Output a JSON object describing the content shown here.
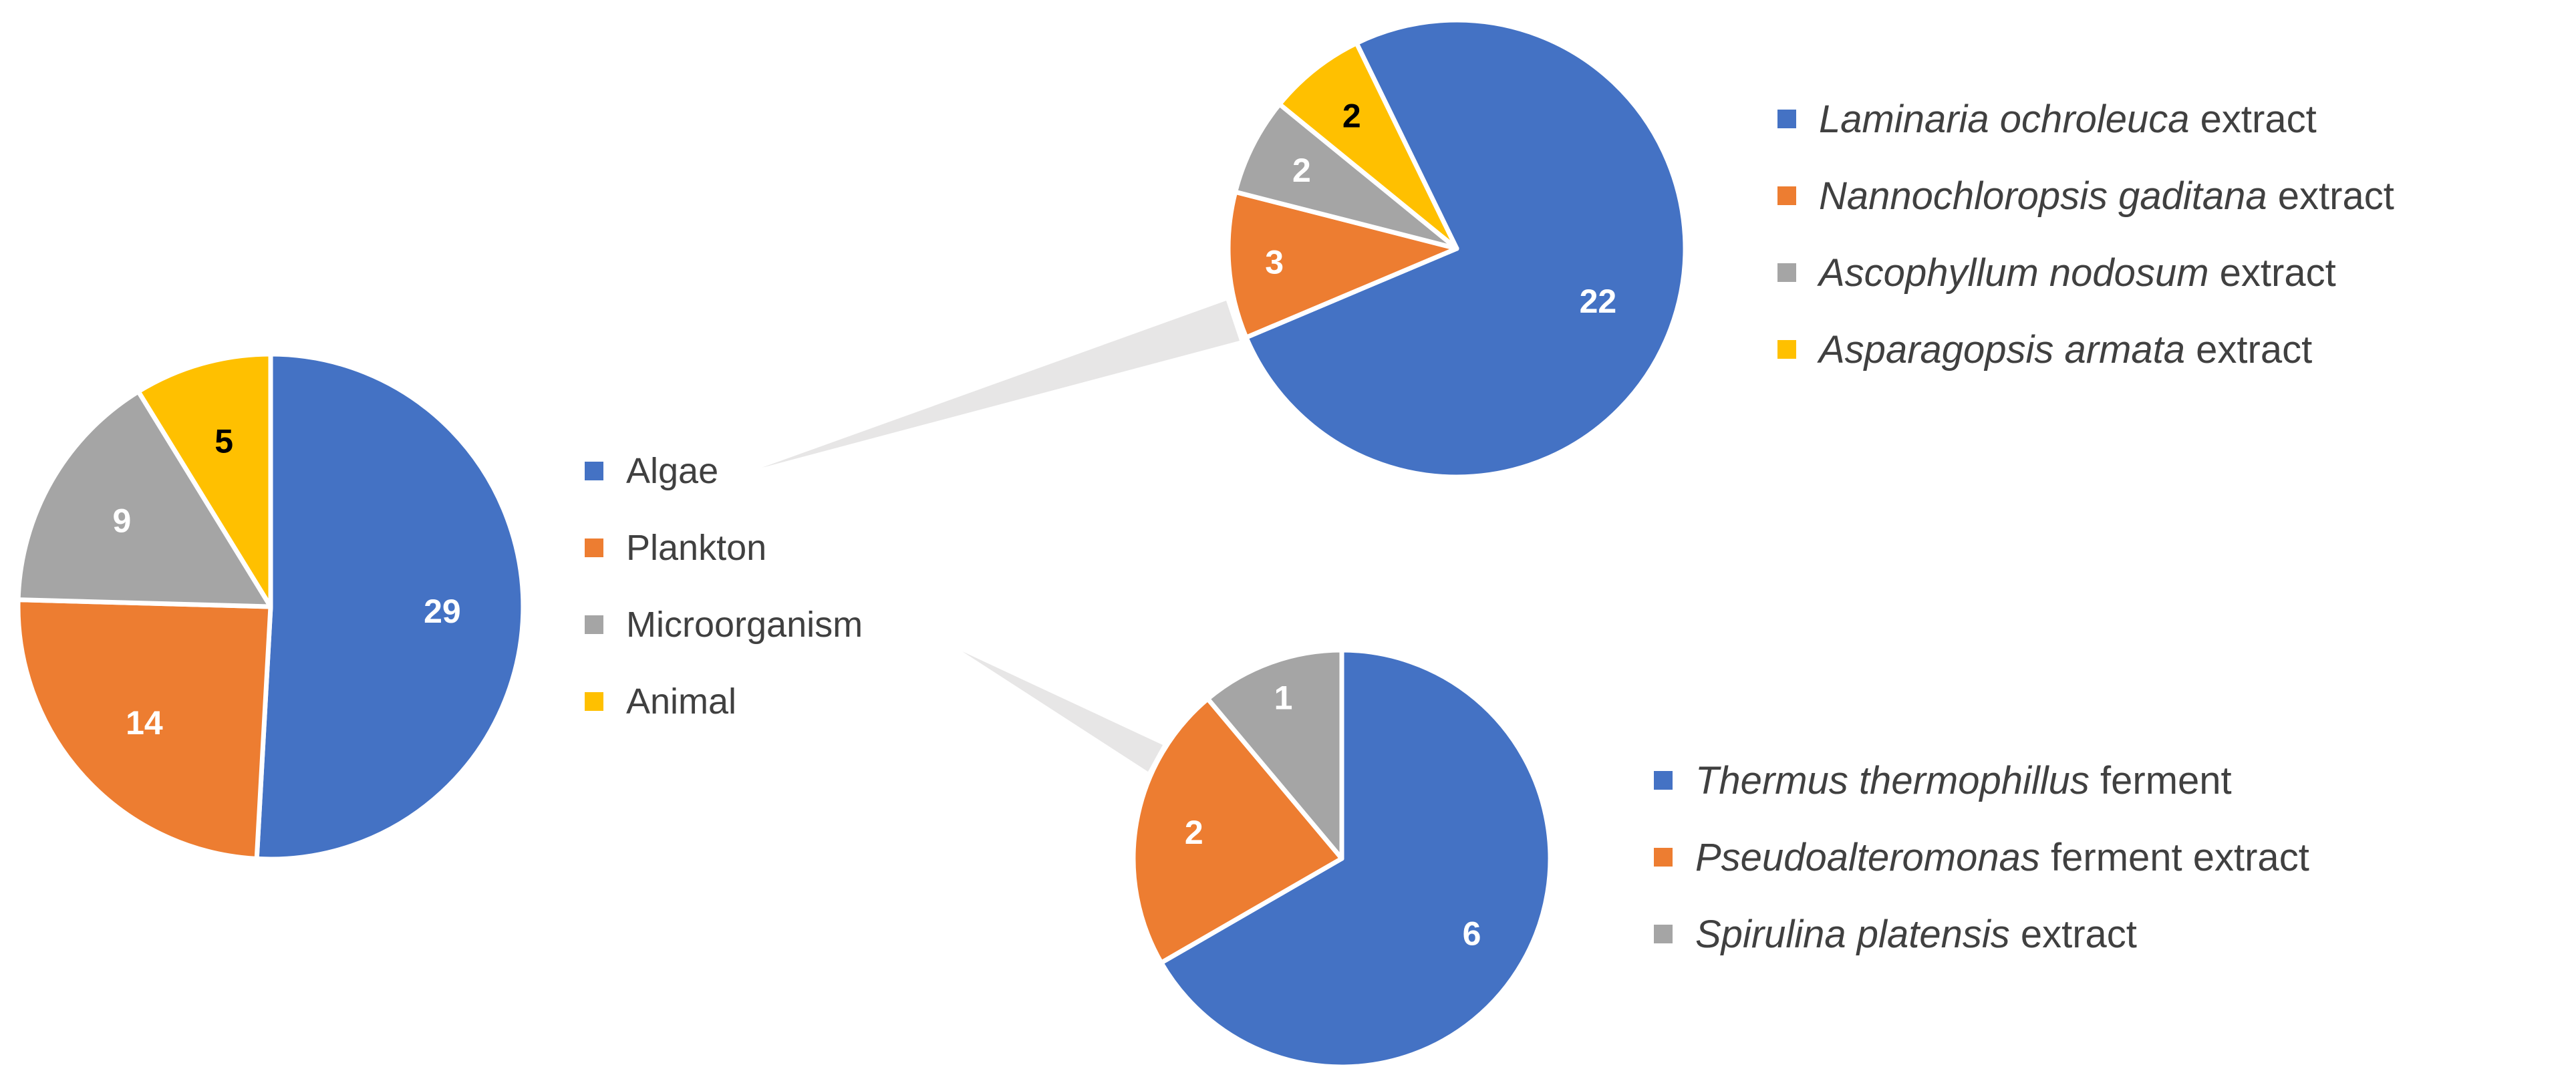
{
  "chart_data": [
    {
      "type": "pie",
      "title": "",
      "slices": [
        {
          "label": "Algae",
          "value": 29,
          "color": "#4472C4",
          "label_color": "#FFFFFF"
        },
        {
          "label": "Plankton",
          "value": 14,
          "color": "#ED7D31",
          "label_color": "#FFFFFF"
        },
        {
          "label": "Microorganism",
          "value": 9,
          "color": "#A5A5A5",
          "label_color": "#FFFFFF"
        },
        {
          "label": "Animal",
          "value": 5,
          "color": "#FFC000",
          "label_color": "#000000"
        }
      ],
      "legend": "right"
    },
    {
      "type": "pie",
      "title": "",
      "detail_of": "Algae",
      "slices": [
        {
          "species": "Laminaria ochroleuca",
          "suffix": " extract",
          "value": 22,
          "color": "#4472C4",
          "label_color": "#FFFFFF"
        },
        {
          "species": "Nannochloropsis gaditana",
          "suffix": " extract",
          "value": 3,
          "color": "#ED7D31",
          "label_color": "#FFFFFF"
        },
        {
          "species": "Ascophyllum nodosum",
          "suffix": " extract",
          "value": 2,
          "color": "#A5A5A5",
          "label_color": "#FFFFFF"
        },
        {
          "species": "Asparagopsis armata",
          "suffix": " extract",
          "value": 2,
          "color": "#FFC000",
          "label_color": "#000000"
        }
      ],
      "legend": "right"
    },
    {
      "type": "pie",
      "title": "",
      "detail_of": "Microorganism",
      "slices": [
        {
          "species": "Thermus thermophillus",
          "suffix": " ferment",
          "value": 6,
          "color": "#4472C4",
          "label_color": "#FFFFFF"
        },
        {
          "species": "Pseudoalteromonas",
          "suffix": " ferment extract",
          "value": 2,
          "color": "#ED7D31",
          "label_color": "#FFFFFF"
        },
        {
          "species": "Spirulina platensis",
          "suffix": " extract",
          "value": 1,
          "color": "#A5A5A5",
          "label_color": "#FFFFFF"
        }
      ],
      "legend": "right"
    }
  ]
}
